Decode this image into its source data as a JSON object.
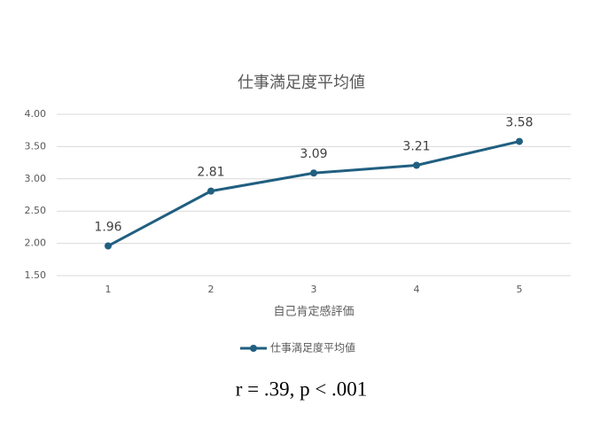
{
  "chart_data": {
    "type": "line",
    "title": "仕事満足度平均値",
    "x_label": "自己肯定感評価",
    "categories": [
      "1",
      "2",
      "3",
      "4",
      "5"
    ],
    "series": [
      {
        "name": "仕事満足度平均値",
        "color": "#215f80",
        "values": [
          1.96,
          2.81,
          3.09,
          3.21,
          3.58
        ]
      }
    ],
    "ylim": [
      1.5,
      4.0
    ],
    "yticks": [
      {
        "value": 1.5,
        "label": "1.50"
      },
      {
        "value": 2.0,
        "label": "2.00"
      },
      {
        "value": 2.5,
        "label": "2.50"
      },
      {
        "value": 3.0,
        "label": "3.00"
      },
      {
        "value": 3.5,
        "label": "3.50"
      },
      {
        "value": 4.0,
        "label": "4.00"
      }
    ],
    "grid": true,
    "legend": "bottom",
    "annotation": "r = .39, p < .001"
  }
}
